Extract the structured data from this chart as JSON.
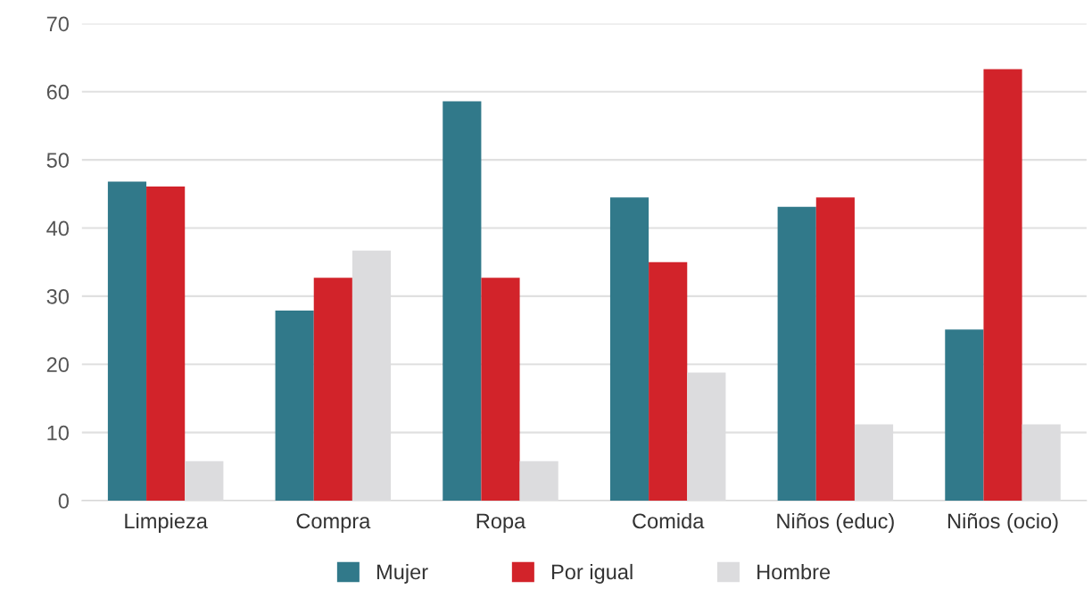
{
  "chart_data": {
    "type": "bar",
    "categories": [
      "Limpieza",
      "Compra",
      "Ropa",
      "Comida",
      "Niños (educ)",
      "Niños (ocio)"
    ],
    "series": [
      {
        "name": "Mujer",
        "color": "#31798a",
        "values": [
          46.8,
          27.9,
          58.6,
          44.5,
          43.1,
          25.1
        ]
      },
      {
        "name": "Por igual",
        "color": "#d2232a",
        "values": [
          46.1,
          32.7,
          32.7,
          35.0,
          44.5,
          63.3
        ]
      },
      {
        "name": "Hombre",
        "color": "#dcdcde",
        "values": [
          5.8,
          36.7,
          5.8,
          18.8,
          11.2,
          11.2
        ]
      }
    ],
    "ylim": [
      0,
      70
    ],
    "yticks": [
      0,
      10,
      20,
      30,
      40,
      50,
      60,
      70
    ],
    "grid": "y",
    "legend": "bottom"
  }
}
